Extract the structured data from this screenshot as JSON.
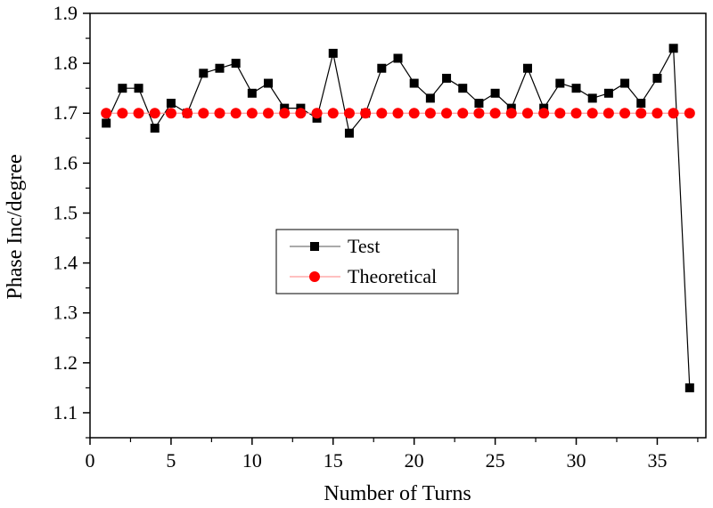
{
  "chart_data": {
    "type": "line",
    "title": "",
    "xlabel": "Number of Turns",
    "ylabel": "Phase Inc/degree",
    "xlim": [
      0,
      38
    ],
    "ylim": [
      1.05,
      1.9
    ],
    "xticks": [
      0,
      5,
      10,
      15,
      20,
      25,
      30,
      35
    ],
    "xtick_labels": [
      "0",
      "5",
      "10",
      "15",
      "20",
      "25",
      "30",
      "35"
    ],
    "yticks": [
      1.1,
      1.2,
      1.3,
      1.4,
      1.5,
      1.6,
      1.7,
      1.8,
      1.9
    ],
    "ytick_labels": [
      "1.1",
      "1.2",
      "1.3",
      "1.4",
      "1.5",
      "1.6",
      "1.7",
      "1.8",
      "1.9"
    ],
    "grid": false,
    "legend_position": "center",
    "series": [
      {
        "name": "Test",
        "color": "#000000",
        "marker": "square",
        "x": [
          1,
          2,
          3,
          4,
          5,
          6,
          7,
          8,
          9,
          10,
          11,
          12,
          13,
          14,
          15,
          16,
          17,
          18,
          19,
          20,
          21,
          22,
          23,
          24,
          25,
          26,
          27,
          28,
          29,
          30,
          31,
          32,
          33,
          34,
          35,
          36,
          37
        ],
        "y": [
          1.68,
          1.75,
          1.75,
          1.67,
          1.72,
          1.7,
          1.78,
          1.79,
          1.8,
          1.74,
          1.76,
          1.71,
          1.71,
          1.69,
          1.82,
          1.66,
          1.7,
          1.79,
          1.81,
          1.76,
          1.73,
          1.77,
          1.75,
          1.72,
          1.74,
          1.71,
          1.79,
          1.71,
          1.76,
          1.75,
          1.73,
          1.74,
          1.76,
          1.72,
          1.77,
          1.83,
          1.15
        ]
      },
      {
        "name": "Theoretical",
        "color": "#ff0000",
        "marker": "circle",
        "x": [
          1,
          2,
          3,
          4,
          5,
          6,
          7,
          8,
          9,
          10,
          11,
          12,
          13,
          14,
          15,
          16,
          17,
          18,
          19,
          20,
          21,
          22,
          23,
          24,
          25,
          26,
          27,
          28,
          29,
          30,
          31,
          32,
          33,
          34,
          35,
          36,
          37
        ],
        "y": [
          1.7,
          1.7,
          1.7,
          1.7,
          1.7,
          1.7,
          1.7,
          1.7,
          1.7,
          1.7,
          1.7,
          1.7,
          1.7,
          1.7,
          1.7,
          1.7,
          1.7,
          1.7,
          1.7,
          1.7,
          1.7,
          1.7,
          1.7,
          1.7,
          1.7,
          1.7,
          1.7,
          1.7,
          1.7,
          1.7,
          1.7,
          1.7,
          1.7,
          1.7,
          1.7,
          1.7,
          1.7
        ]
      }
    ]
  }
}
